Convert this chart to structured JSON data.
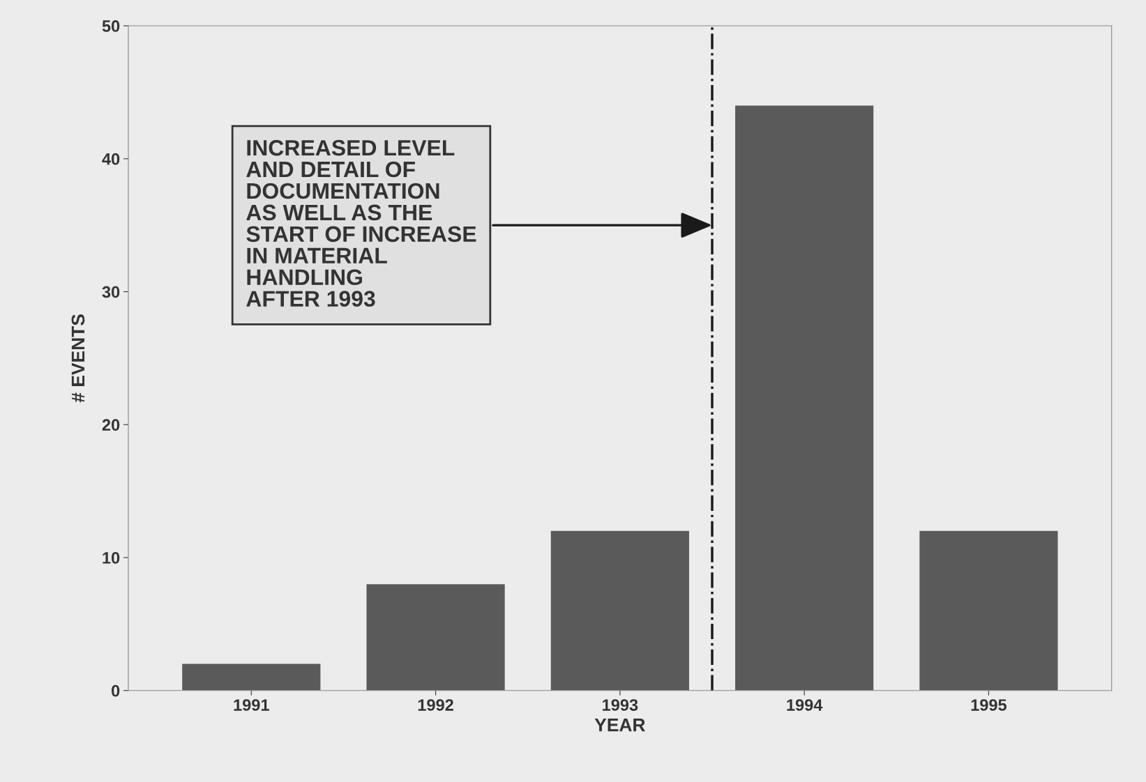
{
  "chart_data": {
    "type": "bar",
    "xlabel": "YEAR",
    "ylabel": "# EVENTS",
    "x": [
      1991,
      1992,
      1993,
      1994,
      1995
    ],
    "values": [
      2,
      8,
      12,
      44,
      12
    ],
    "color": "#5a5a5a",
    "xlim": [
      1990.333,
      1995.667
    ],
    "xticks": [
      1991,
      1992,
      1993,
      1994,
      1995
    ],
    "ylim": [
      0,
      50
    ],
    "yticks": [
      0,
      10,
      20,
      30,
      40,
      50
    ],
    "grid": false,
    "ref_lines": [
      {
        "axis": "x",
        "value": 1993.5,
        "color": "#1a1a1a",
        "line_style": "dashdot"
      }
    ],
    "annotations": [
      {
        "text": "INCREASED LEVEL\nAND DETAIL OF\nDOCUMENTATION\nAS WELL AS THE\nSTART OF INCREASE\nIN MATERIAL\nHANDLING\nAFTER 1993",
        "x": 1993.5,
        "y": 35
      }
    ]
  }
}
